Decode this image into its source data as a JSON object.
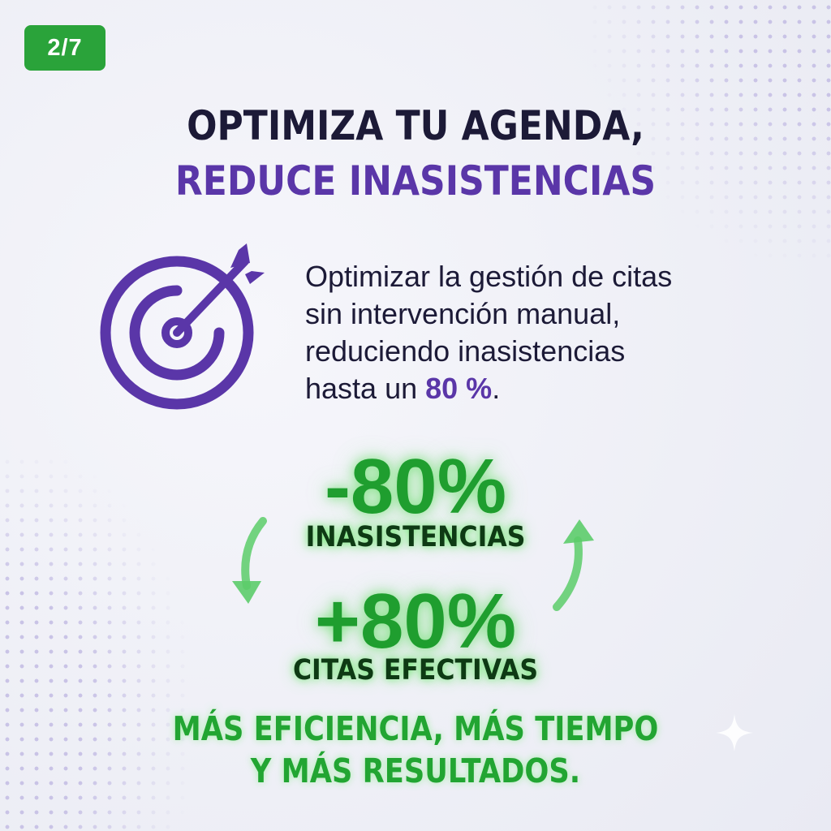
{
  "page_indicator": "2/7",
  "title": {
    "line1": "OPTIMIZA TU AGENDA,",
    "line2": "REDUCE INASISTENCIAS"
  },
  "description": {
    "line1": "Optimizar la gestión de citas",
    "line2": "sin intervención manual,",
    "line3": "reduciendo inasistencias",
    "line4_prefix": "hasta un",
    "highlight": "80 %",
    "line4_suffix": "."
  },
  "stats": [
    {
      "value": "-80%",
      "label": "INASISTENCIAS"
    },
    {
      "value": "+80%",
      "label": "CITAS EFECTIVAS"
    }
  ],
  "footer": {
    "line1": "MÁS EFICIENCIA, MÁS TIEMPO",
    "line2": "Y MÁS RESULTADOS."
  },
  "icons": {
    "target": "target-arrow-icon",
    "cycle_left": "arrow-down-left-icon",
    "cycle_right": "arrow-up-right-icon",
    "sparkle": "sparkle-icon"
  },
  "colors": {
    "badge_green": "#2aa33a",
    "title_dark": "#1c1a37",
    "accent_purple": "#5a36a8",
    "stat_green": "#1f9e2f"
  }
}
